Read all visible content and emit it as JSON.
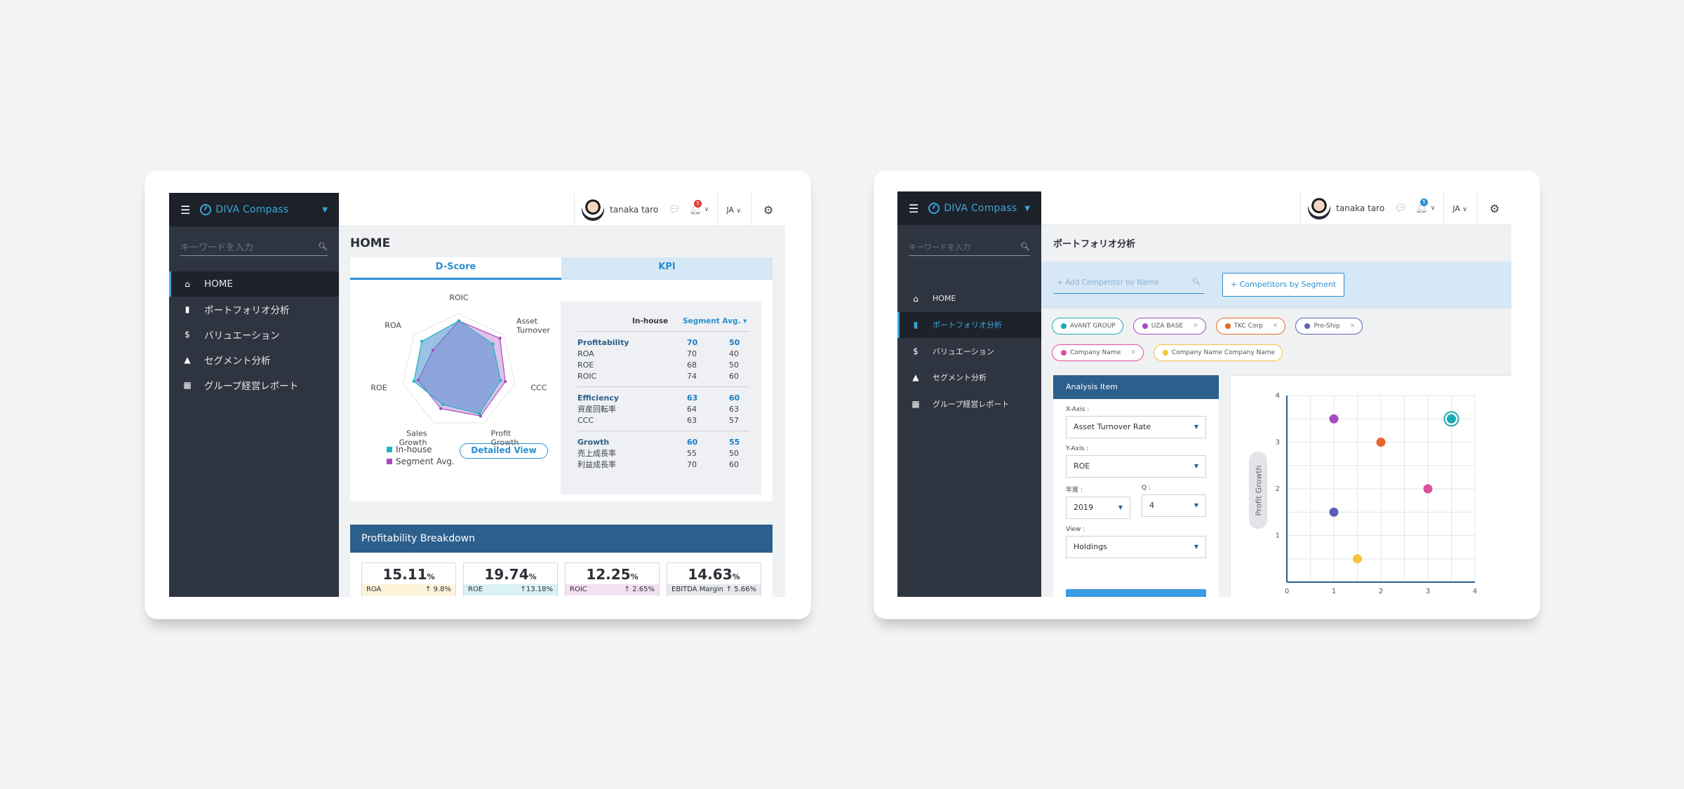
{
  "app": {
    "brand": "DIVA Compass",
    "user_name": "tanaka taro",
    "lang": "JA",
    "search_placeholder": "キーワードを入力"
  },
  "home": {
    "notif_count": "5",
    "nav": [
      {
        "label": "HOME",
        "icon": "home-icon"
      },
      {
        "label": "ポートフォリオ分析",
        "icon": "bar-chart-icon"
      },
      {
        "label": "バリュエーション",
        "icon": "dollar-icon"
      },
      {
        "label": "セグメント分析",
        "icon": "shapes-icon"
      },
      {
        "label": "グループ経営レポート",
        "icon": "building-icon"
      }
    ],
    "page_title": "HOME",
    "tabs": [
      "D-Score",
      "KPI"
    ],
    "radar": {
      "axes": [
        "ROIC",
        "Asset Turnover",
        "CCC",
        "Profit Growth",
        "Sales Growth",
        "ROE",
        "ROA"
      ],
      "axis_labels": [
        [
          "ROIC"
        ],
        [
          "Asset",
          "Turnover"
        ],
        [
          "CCC"
        ],
        [
          "Profit",
          "Growth"
        ],
        [
          "Sales",
          "Growth"
        ],
        [
          "ROE"
        ],
        [
          "ROA"
        ]
      ],
      "in_house": [
        74,
        64,
        63,
        70,
        55,
        68,
        70
      ],
      "segment_avg": [
        60,
        63,
        57,
        60,
        50,
        50,
        40
      ],
      "colors": {
        "in_house": "#1fb5c1",
        "segment_avg": "#a84bc1"
      }
    },
    "legend": {
      "in_house": "In-house",
      "segment_avg": "Segment Avg."
    },
    "detailed_view": "Detailed View",
    "metrics": {
      "col_in_house": "In-house",
      "col_segment": "Segment Avg. ▾",
      "groups": [
        {
          "name": "Profitability",
          "v1": "70",
          "v2": "50",
          "rows": [
            {
              "label": "ROA",
              "v1": "70",
              "v2": "40"
            },
            {
              "label": "ROE",
              "v1": "68",
              "v2": "50"
            },
            {
              "label": "ROIC",
              "v1": "74",
              "v2": "60"
            }
          ]
        },
        {
          "name": "Efficiency",
          "v1": "63",
          "v2": "60",
          "rows": [
            {
              "label": "資産回転率",
              "v1": "64",
              "v2": "63"
            },
            {
              "label": "CCC",
              "v1": "63",
              "v2": "57"
            }
          ]
        },
        {
          "name": "Growth",
          "v1": "60",
          "v2": "55",
          "rows": [
            {
              "label": "売上成長率",
              "v1": "55",
              "v2": "50"
            },
            {
              "label": "利益成長率",
              "v1": "70",
              "v2": "60"
            }
          ]
        }
      ]
    },
    "breakdown_title": "Profitability Breakdown",
    "kpis": [
      {
        "value": "15.11",
        "unit": "%",
        "label": "ROA",
        "change": "↑ 9.8%",
        "bg": "#fdf3d8"
      },
      {
        "value": "19.74",
        "unit": "%",
        "label": "ROE",
        "change": "↑13.18%",
        "bg": "#d9f1f4"
      },
      {
        "value": "12.25",
        "unit": "%",
        "label": "ROIC",
        "change": "↑ 2.65%",
        "bg": "#f3e0f1"
      },
      {
        "value": "14.63",
        "unit": "%",
        "label": "EBITDA Margin",
        "change": "↑ 5.66%",
        "bg": "#e6e8eb"
      }
    ]
  },
  "portfolio": {
    "notif_count": "5",
    "page_title": "ポートフォリオ分析",
    "add_competitor_placeholder": "+ Add Competitor by Name",
    "competitors_by_segment": "+ Competitors by Segment",
    "chips": [
      {
        "label": "AVANT GROUP",
        "color": "#1aa8b5",
        "closable": false
      },
      {
        "label": "UZA BASE",
        "color": "#a84bc1",
        "closable": true
      },
      {
        "label": "TKC Corp",
        "color": "#e8642a",
        "closable": true
      },
      {
        "label": "Pro-Ship",
        "color": "#5c61b8",
        "closable": true
      },
      {
        "label": "Company Name",
        "color": "#d9519a",
        "closable": true
      },
      {
        "label": "Company Name Company Name",
        "color": "#f5c43a",
        "closable": false
      }
    ],
    "analysis": {
      "title": "Analysis Item",
      "x_axis_label": "X-Axis :",
      "x_axis_value": "Asset Turnover Rate",
      "y_axis_label": "Y-Axis :",
      "y_axis_value": "ROE",
      "year_label": "年度 :",
      "year_value": "2019",
      "q_label": "Q :",
      "q_value": "4",
      "view_label": "View :",
      "view_value": "Holdings"
    }
  },
  "chart_data": {
    "type": "scatter",
    "ylabel": "Profit Growth",
    "xlim": [
      0,
      4
    ],
    "ylim": [
      0,
      4
    ],
    "x_ticks": [
      "0",
      "1",
      "2",
      "3",
      "4"
    ],
    "y_ticks": [
      "1",
      "2",
      "3",
      "4"
    ],
    "grid": true,
    "points": [
      {
        "x": 3.5,
        "y": 3.5,
        "color": "#1aa8b5",
        "highlight": true
      },
      {
        "x": 1.0,
        "y": 3.5,
        "color": "#a84bc1"
      },
      {
        "x": 2.0,
        "y": 3.0,
        "color": "#e8642a"
      },
      {
        "x": 3.0,
        "y": 2.0,
        "color": "#d9519a"
      },
      {
        "x": 1.0,
        "y": 1.5,
        "color": "#5c61b8"
      },
      {
        "x": 1.5,
        "y": 0.5,
        "color": "#f5c43a"
      }
    ]
  }
}
